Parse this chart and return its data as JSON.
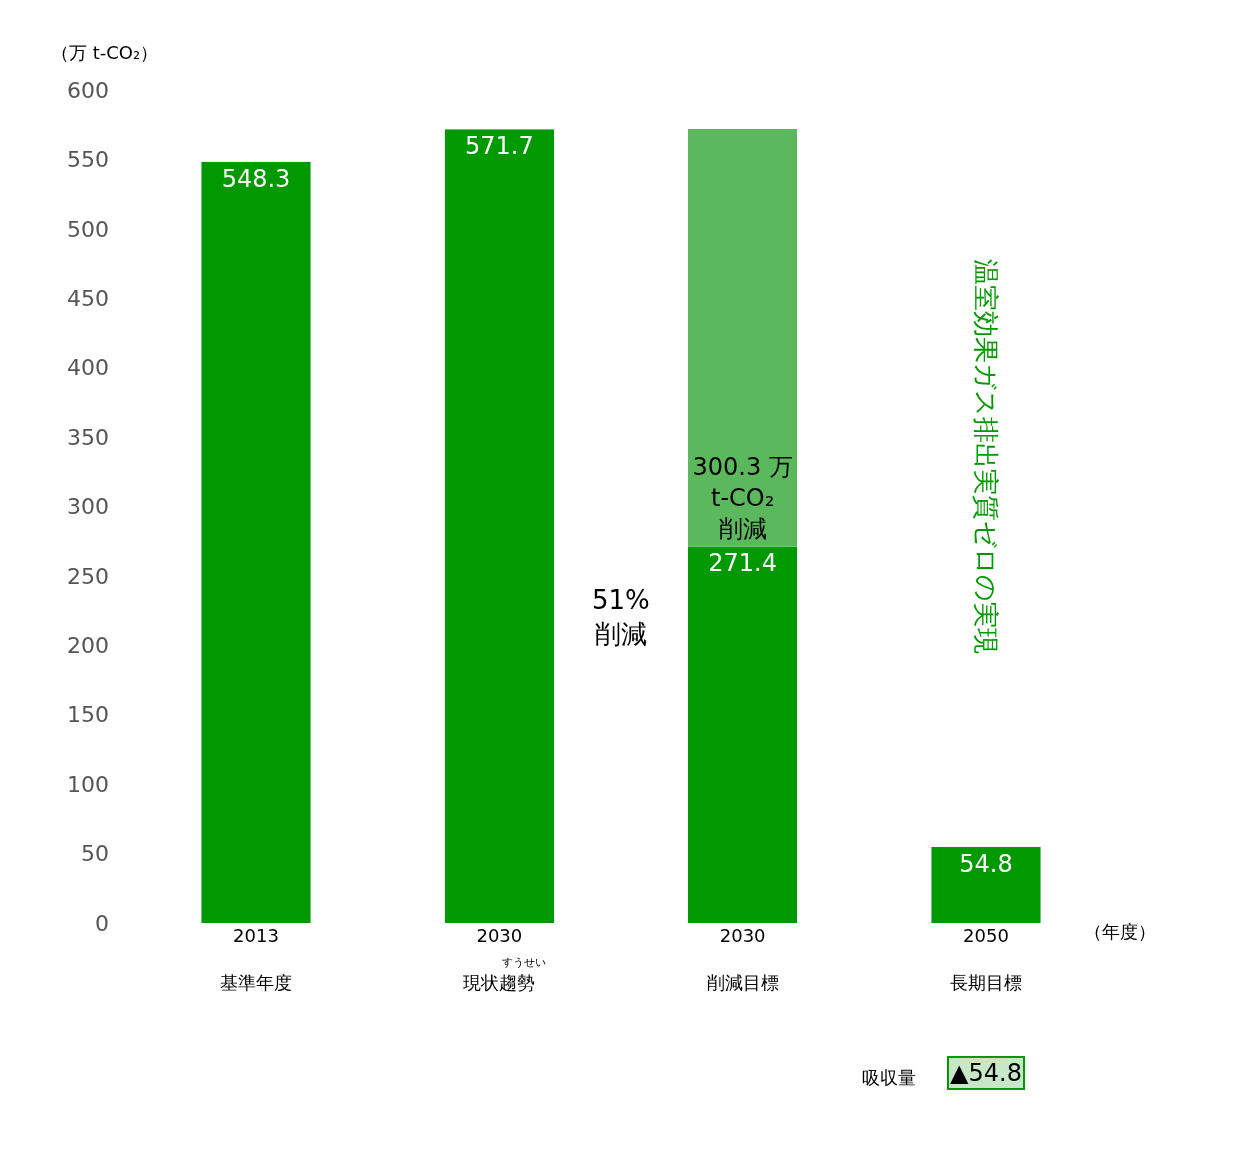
{
  "chart_data": {
    "type": "bar",
    "stacked": true,
    "ylabel": "（万 t-CO₂）",
    "categories": [
      "2013\n基準年度",
      "2030\n現状趨勢",
      "2030\n削減目標",
      "2050\n長期目標"
    ],
    "series": [
      {
        "color": "#009900",
        "values": [
          548.3,
          571.7,
          271.4,
          54.8
        ],
        "data_labels": true
      },
      {
        "color": "#5cb85c",
        "values": [
          null,
          null,
          300.3,
          null
        ],
        "value_labels": [
          null,
          null,
          "300.3 万\nt-CO₂\n削減",
          null
        ]
      }
    ],
    "ylim": [
      0,
      600
    ],
    "yticks": [
      0,
      50,
      100,
      150,
      200,
      250,
      300,
      350,
      400,
      450,
      500,
      550,
      600
    ],
    "annotations": [
      "すうせい",
      "51%\n削減",
      "温室効果ガス排出実質ゼロの実現",
      "吸収量",
      "▲54.8",
      "（年度）"
    ]
  }
}
